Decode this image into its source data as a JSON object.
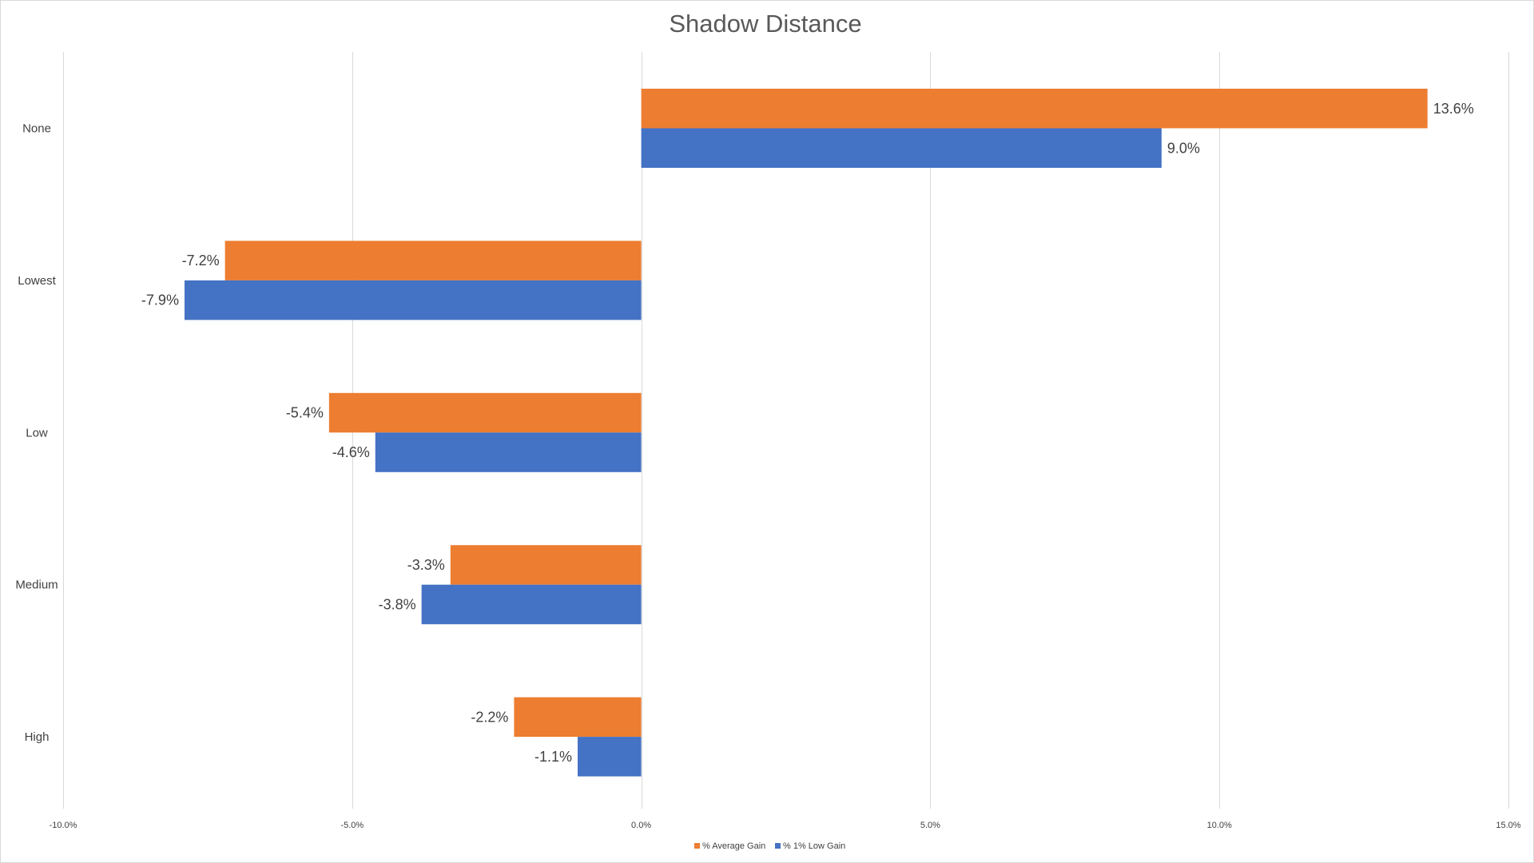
{
  "chart_data": {
    "type": "bar",
    "orientation": "horizontal",
    "title": "Shadow Distance",
    "categories": [
      "None",
      "Lowest",
      "Low",
      "Medium",
      "High"
    ],
    "series": [
      {
        "name": "% Average Gain",
        "color": "#ED7D31",
        "values": [
          13.6,
          -7.2,
          -5.4,
          -3.3,
          -2.2
        ],
        "labels": [
          "13.6%",
          "-7.2%",
          "-5.4%",
          "-3.3%",
          "-2.2%"
        ]
      },
      {
        "name": "% 1% Low Gain",
        "color": "#4472C4",
        "values": [
          9.0,
          -7.9,
          -4.6,
          -3.8,
          -1.1
        ],
        "labels": [
          "9.0%",
          "-7.9%",
          "-4.6%",
          "-3.8%",
          "-1.1%"
        ]
      }
    ],
    "xlim": [
      -10,
      15
    ],
    "xticks": [
      -10,
      -5,
      0,
      5,
      10,
      15
    ],
    "xtick_labels": [
      "-10.0%",
      "-5.0%",
      "0.0%",
      "5.0%",
      "10.0%",
      "15.0%"
    ],
    "grid": true,
    "legend_position": "bottom"
  }
}
